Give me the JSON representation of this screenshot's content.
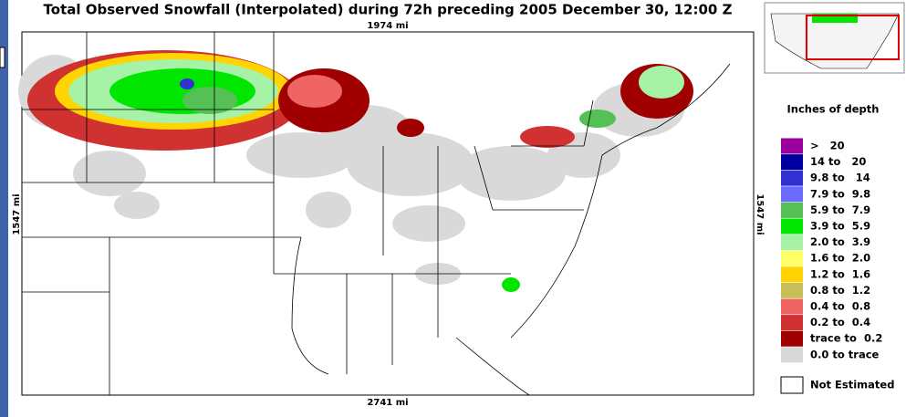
{
  "header": {
    "title": "Total Observed Snowfall (Interpolated) during 72h preceding 2005 December 30, 12:00 Z"
  },
  "map": {
    "top_distance": "1974 mi",
    "bottom_distance": "2741 mi",
    "left_distance": "1547 mi",
    "right_distance": "1547 mi"
  },
  "legend": {
    "title": "Inches of depth",
    "items": [
      {
        "label": ">   20",
        "color": "#9c009c"
      },
      {
        "label": "14 to   20",
        "color": "#0000a0"
      },
      {
        "label": "9.8 to   14",
        "color": "#3232d2"
      },
      {
        "label": "7.9 to  9.8",
        "color": "#6b6bff"
      },
      {
        "label": "5.9 to  7.9",
        "color": "#55c055"
      },
      {
        "label": "3.9 to  5.9",
        "color": "#00e600"
      },
      {
        "label": "2.0 to  3.9",
        "color": "#a6f2a6"
      },
      {
        "label": "1.6 to  2.0",
        "color": "#ffff66"
      },
      {
        "label": "1.2 to  1.6",
        "color": "#ffd400"
      },
      {
        "label": "0.8 to  1.2",
        "color": "#c8bf5a"
      },
      {
        "label": "0.4 to  0.8",
        "color": "#f06464"
      },
      {
        "label": "0.2 to  0.4",
        "color": "#d03232"
      },
      {
        "label": "trace to  0.2",
        "color": "#a00000"
      },
      {
        "label": "0.0 to trace",
        "color": "#d9d9d9"
      }
    ],
    "not_estimated": "Not Estimated"
  }
}
